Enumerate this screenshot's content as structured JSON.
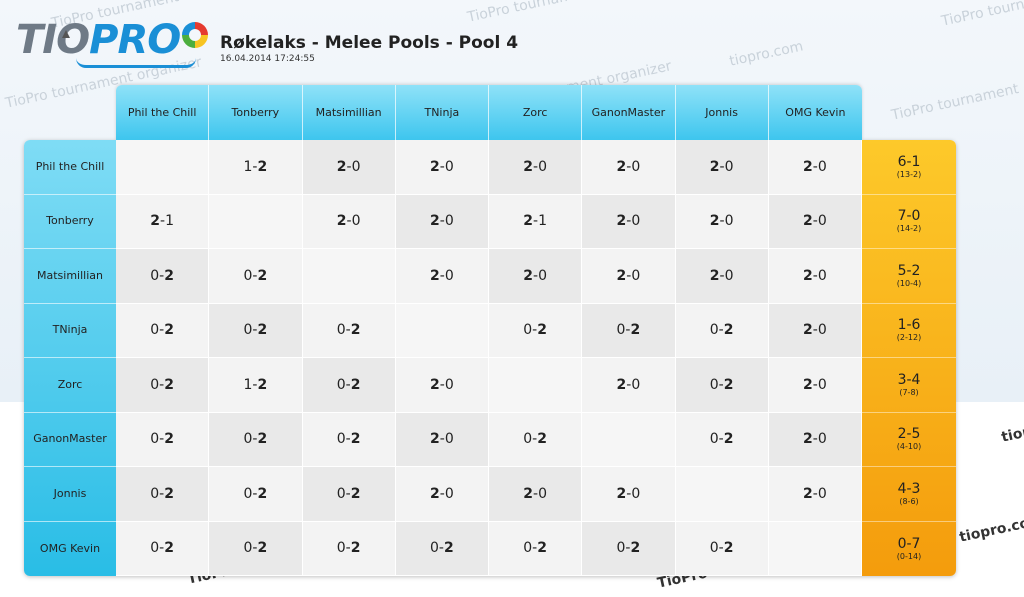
{
  "header": {
    "logo_tio": "TIO",
    "logo_pro": "PRO",
    "title": "Røkelaks - Melee Pools - Pool 4",
    "date": "16.04.2014 17:24:55"
  },
  "watermarks": [
    "TioPro tournament",
    "tiopro.com",
    "TioPro tournament organizer",
    "TioPro tournament",
    "tournament organizer",
    "tiopro.com",
    "TioPro tournament organizer",
    "tournament organizer",
    "tiopro",
    "tiopro.com",
    "TioPro tour",
    "TioPro tour"
  ],
  "players": [
    "Phil the Chill",
    "Tonberry",
    "Matsimillian",
    "TNinja",
    "Zorc",
    "GanonMaster",
    "Jonnis",
    "OMG Kevin"
  ],
  "results": [
    [
      "",
      "1-2",
      "2-0",
      "2-0",
      "2-0",
      "2-0",
      "2-0",
      "2-0"
    ],
    [
      "2-1",
      "",
      "2-0",
      "2-0",
      "2-1",
      "2-0",
      "2-0",
      "2-0"
    ],
    [
      "0-2",
      "0-2",
      "",
      "2-0",
      "2-0",
      "2-0",
      "2-0",
      "2-0"
    ],
    [
      "0-2",
      "0-2",
      "0-2",
      "",
      "0-2",
      "0-2",
      "0-2",
      "2-0"
    ],
    [
      "0-2",
      "1-2",
      "0-2",
      "2-0",
      "",
      "2-0",
      "0-2",
      "2-0"
    ],
    [
      "0-2",
      "0-2",
      "0-2",
      "2-0",
      "0-2",
      "",
      "0-2",
      "2-0"
    ],
    [
      "0-2",
      "0-2",
      "0-2",
      "2-0",
      "2-0",
      "2-0",
      "",
      "2-0"
    ],
    [
      "0-2",
      "0-2",
      "0-2",
      "0-2",
      "0-2",
      "0-2",
      "0-2",
      ""
    ]
  ],
  "totals": [
    {
      "record": "6-1",
      "games": "(13-2)"
    },
    {
      "record": "7-0",
      "games": "(14-2)"
    },
    {
      "record": "5-2",
      "games": "(10-4)"
    },
    {
      "record": "1-6",
      "games": "(2-12)"
    },
    {
      "record": "3-4",
      "games": "(7-8)"
    },
    {
      "record": "2-5",
      "games": "(4-10)"
    },
    {
      "record": "4-3",
      "games": "(8-6)"
    },
    {
      "record": "0-7",
      "games": "(0-14)"
    }
  ]
}
